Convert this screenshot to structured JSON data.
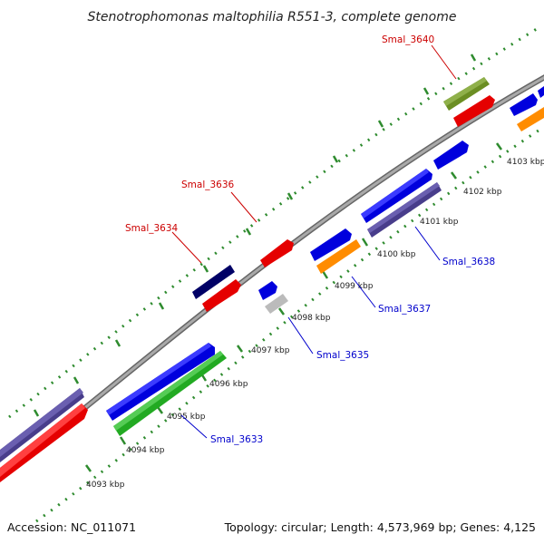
{
  "title": "Stenotrophomonas maltophilia R551-3, complete genome",
  "footer": {
    "accession": "Accession: NC_011071",
    "topology": "Topology: circular; Length: 4,573,969 bp; Genes: 4,125"
  },
  "kbp_labels": [
    "4093 kbp",
    "4094 kbp",
    "4095 kbp",
    "4096 kbp",
    "4097 kbp",
    "4098 kbp",
    "4099 kbp",
    "4100 kbp",
    "4101 kbp",
    "4102 kbp",
    "4103 kbp"
  ],
  "gene_labels": {
    "smal_3640": "Smal_3640",
    "smal_3636": "Smal_3636",
    "smal_3634": "Smal_3634",
    "smal_3638": "Smal_3638",
    "smal_3637": "Smal_3637",
    "smal_3635": "Smal_3635",
    "smal_3633": "Smal_3633"
  },
  "colors": {
    "label_forward": "#cc0000",
    "label_reverse": "#0000cc",
    "ruler": "#2e7d2e",
    "backbone": "#888888"
  }
}
